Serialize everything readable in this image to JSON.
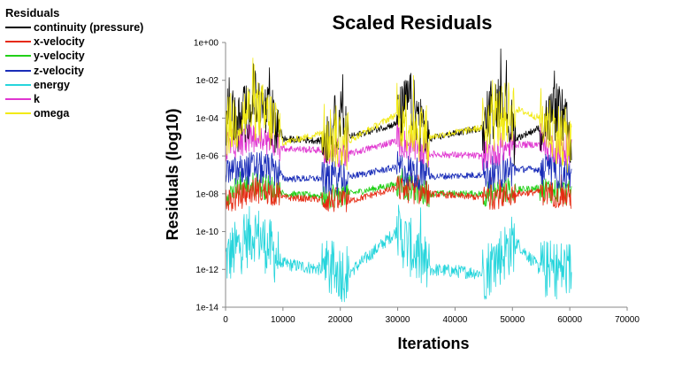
{
  "chart_data": {
    "type": "line",
    "title": "Scaled Residuals",
    "xlabel": "Iterations",
    "ylabel": "Residuals (log10)",
    "xlim": [
      0,
      70000
    ],
    "ylim_log10": [
      -14,
      0
    ],
    "x_ticks": [
      0,
      10000,
      20000,
      30000,
      40000,
      50000,
      60000,
      70000
    ],
    "x_tick_labels": [
      "0",
      "10000",
      "20000",
      "30000",
      "40000",
      "50000",
      "60000",
      "70000"
    ],
    "y_ticks_log10": [
      0,
      -2,
      -4,
      -6,
      -8,
      -10,
      -12,
      -14
    ],
    "y_tick_labels": [
      "1e+00",
      "1e-02",
      "1e-04",
      "1e-06",
      "1e-08",
      "1e-10",
      "1e-12",
      "1e-14"
    ],
    "legend": {
      "title": "Residuals",
      "position": "top-left, outside plot"
    },
    "bursts": [
      {
        "start": 0,
        "end": 9500
      },
      {
        "start": 16800,
        "end": 21500
      },
      {
        "start": 29800,
        "end": 35500
      },
      {
        "start": 44800,
        "end": 50500
      },
      {
        "start": 54800,
        "end": 60300
      }
    ],
    "series": [
      {
        "name": "continuity (pressure)",
        "color": "#000000",
        "x": [
          0,
          500,
          2000,
          5000,
          9500,
          10000,
          16800,
          20000,
          21500,
          29800,
          32000,
          35500,
          44800,
          48000,
          50500,
          54800,
          58000,
          60300
        ],
        "log10": [
          -5.0,
          -3.0,
          -4.5,
          -3.0,
          -4.5,
          -5.1,
          -5.2,
          -4.0,
          -5.0,
          -4.3,
          -3.0,
          -5.1,
          -4.5,
          -2.8,
          -5.1,
          -4.5,
          -3.5,
          -5.3
        ]
      },
      {
        "name": "x-velocity",
        "color": "#e62a12",
        "x": [
          0,
          5000,
          9500,
          10000,
          16800,
          21500,
          29800,
          35500,
          44800,
          50500,
          54800,
          60300
        ],
        "log10": [
          -8.5,
          -7.8,
          -8.0,
          -8.2,
          -8.3,
          -8.4,
          -7.7,
          -8.0,
          -8.2,
          -8.0,
          -7.9,
          -8.2
        ]
      },
      {
        "name": "y-velocity",
        "color": "#22d018",
        "x": [
          0,
          5000,
          9500,
          10000,
          16800,
          21500,
          29800,
          35500,
          44800,
          50500,
          54800,
          60300
        ],
        "log10": [
          -8.0,
          -7.5,
          -7.8,
          -8.0,
          -8.1,
          -8.0,
          -7.5,
          -8.0,
          -8.0,
          -7.8,
          -7.7,
          -8.0
        ]
      },
      {
        "name": "z-velocity",
        "color": "#1a2db8",
        "x": [
          0,
          5000,
          9500,
          10000,
          16800,
          21500,
          29800,
          35500,
          44800,
          50500,
          54800,
          60300
        ],
        "log10": [
          -7.0,
          -6.6,
          -6.8,
          -7.2,
          -7.2,
          -7.1,
          -6.6,
          -7.1,
          -7.0,
          -6.7,
          -6.7,
          -7.0
        ]
      },
      {
        "name": "energy",
        "color": "#27d5dc",
        "x": [
          0,
          5000,
          9500,
          10000,
          16800,
          21500,
          29800,
          35500,
          44800,
          50500,
          54800,
          60300
        ],
        "log10": [
          -11.5,
          -10.0,
          -11.5,
          -11.7,
          -12.0,
          -12.2,
          -10.0,
          -12.0,
          -12.2,
          -10.5,
          -12.0,
          -12.0
        ]
      },
      {
        "name": "k",
        "color": "#e035d0",
        "x": [
          0,
          5000,
          9500,
          10000,
          16800,
          21500,
          29800,
          35500,
          44800,
          50500,
          54800,
          60300
        ],
        "log10": [
          -5.5,
          -5.0,
          -5.5,
          -5.6,
          -5.7,
          -5.9,
          -5.2,
          -5.9,
          -6.0,
          -5.4,
          -5.4,
          -5.8
        ]
      },
      {
        "name": "omega",
        "color": "#f2ea12",
        "x": [
          0,
          5000,
          9500,
          10000,
          16800,
          21500,
          29800,
          35500,
          44800,
          50500,
          54800,
          60300
        ],
        "log10": [
          -4.5,
          -3.5,
          -4.5,
          -5.3,
          -4.8,
          -5.2,
          -3.8,
          -5.0,
          -4.5,
          -3.5,
          -4.0,
          -5.4
        ]
      }
    ]
  }
}
